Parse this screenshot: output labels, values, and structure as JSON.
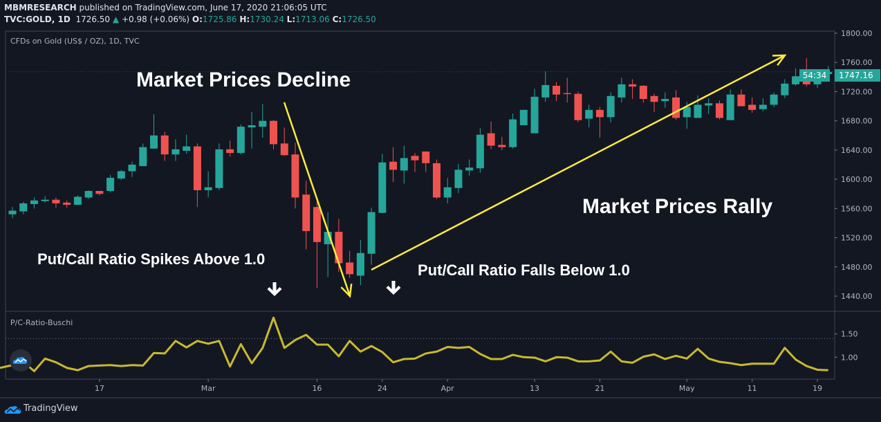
{
  "header": {
    "publisher": "MBMRESEARCH",
    "published_text": "published on TradingView.com, June 17, 2020 21:06:05 UTC",
    "symbol": "TVC:GOLD, 1D",
    "last": "1726.50",
    "change": "+0.98 (+0.06%)",
    "o_label": "O:",
    "o": "1725.86",
    "h_label": "H:",
    "h": "1730.24",
    "l_label": "L:",
    "l": "1713.06",
    "c_label": "C:",
    "c": "1726.50"
  },
  "chart_title": "CFDs on Gold (US$ / OZ), 1D, TVC",
  "indicator_title": "P/C-Ratio-Buschi",
  "price_tag": "1747.16",
  "countdown_tag": "54:34",
  "annotations": {
    "decline": "Market Prices Decline",
    "rally": "Market Prices Rally",
    "spikes": "Put/Call Ratio Spikes Above 1.0",
    "falls": "Put/Call Ratio Falls Below 1.0"
  },
  "footer": {
    "brand": "TradingView"
  },
  "colors": {
    "up": "#26a69a",
    "down": "#ef5350",
    "indicator": "#c9b92e",
    "arrow": "#ffeb3b",
    "background": "#131722"
  },
  "chart_data": [
    {
      "type": "candlestick",
      "title": "CFDs on Gold (US$ / OZ), 1D, TVC",
      "ylim": [
        1420,
        1820
      ],
      "y_ticks": [
        "1800.00",
        "1760.00",
        "1720.00",
        "1680.00",
        "1640.00",
        "1600.00",
        "1560.00",
        "1520.00",
        "1480.00",
        "1440.00"
      ],
      "x_ticks": [
        {
          "label": "17",
          "index": 8
        },
        {
          "label": "Mar",
          "index": 18
        },
        {
          "label": "16",
          "index": 28
        },
        {
          "label": "24",
          "index": 34
        },
        {
          "label": "Apr",
          "index": 40
        },
        {
          "label": "13",
          "index": 48
        },
        {
          "label": "21",
          "index": 54
        },
        {
          "label": "May",
          "index": 62
        },
        {
          "label": "11",
          "index": 68
        },
        {
          "label": "19",
          "index": 74
        }
      ],
      "ohlc": [
        [
          1552,
          1562,
          1547,
          1557
        ],
        [
          1556,
          1569,
          1552,
          1567
        ],
        [
          1566,
          1575,
          1560,
          1571
        ],
        [
          1570,
          1577,
          1568,
          1572
        ],
        [
          1572,
          1575,
          1561,
          1567
        ],
        [
          1568,
          1571,
          1561,
          1565
        ],
        [
          1565,
          1578,
          1565,
          1576
        ],
        [
          1575,
          1585,
          1573,
          1584
        ],
        [
          1584,
          1584,
          1578,
          1580
        ],
        [
          1584,
          1606,
          1582,
          1602
        ],
        [
          1601,
          1613,
          1599,
          1611
        ],
        [
          1611,
          1624,
          1603,
          1620
        ],
        [
          1618,
          1649,
          1618,
          1644
        ],
        [
          1642,
          1689,
          1642,
          1660
        ],
        [
          1660,
          1665,
          1625,
          1634
        ],
        [
          1634,
          1655,
          1625,
          1641
        ],
        [
          1639,
          1661,
          1635,
          1645
        ],
        [
          1645,
          1649,
          1562,
          1585
        ],
        [
          1585,
          1611,
          1575,
          1589
        ],
        [
          1588,
          1649,
          1585,
          1641
        ],
        [
          1641,
          1653,
          1631,
          1636
        ],
        [
          1636,
          1675,
          1634,
          1672
        ],
        [
          1671,
          1692,
          1642,
          1674
        ],
        [
          1672,
          1703,
          1657,
          1680
        ],
        [
          1680,
          1681,
          1641,
          1648
        ],
        [
          1649,
          1671,
          1632,
          1633
        ],
        [
          1634,
          1650,
          1560,
          1575
        ],
        [
          1579,
          1598,
          1504,
          1529
        ],
        [
          1562,
          1575,
          1451,
          1514
        ],
        [
          1511,
          1555,
          1466,
          1528
        ],
        [
          1528,
          1546,
          1473,
          1485
        ],
        [
          1486,
          1502,
          1465,
          1470
        ],
        [
          1468,
          1517,
          1455,
          1499
        ],
        [
          1498,
          1561,
          1483,
          1555
        ],
        [
          1554,
          1635,
          1553,
          1623
        ],
        [
          1624,
          1644,
          1596,
          1613
        ],
        [
          1612,
          1646,
          1594,
          1629
        ],
        [
          1632,
          1636,
          1610,
          1626
        ],
        [
          1638,
          1638,
          1610,
          1622
        ],
        [
          1622,
          1627,
          1573,
          1575
        ],
        [
          1575,
          1602,
          1567,
          1589
        ],
        [
          1588,
          1621,
          1581,
          1613
        ],
        [
          1612,
          1627,
          1605,
          1616
        ],
        [
          1615,
          1670,
          1609,
          1661
        ],
        [
          1663,
          1679,
          1641,
          1646
        ],
        [
          1647,
          1658,
          1640,
          1644
        ],
        [
          1644,
          1690,
          1642,
          1682
        ],
        [
          1674,
          1695,
          1674,
          1695
        ],
        [
          1663,
          1724,
          1663,
          1713
        ],
        [
          1712,
          1748,
          1706,
          1729
        ],
        [
          1728,
          1733,
          1707,
          1716
        ],
        [
          1718,
          1739,
          1705,
          1717
        ],
        [
          1717,
          1720,
          1678,
          1681
        ],
        [
          1683,
          1702,
          1671,
          1695
        ],
        [
          1695,
          1699,
          1657,
          1685
        ],
        [
          1685,
          1719,
          1678,
          1714
        ],
        [
          1712,
          1739,
          1705,
          1730
        ],
        [
          1730,
          1737,
          1710,
          1727
        ],
        [
          1728,
          1729,
          1705,
          1710
        ],
        [
          1714,
          1717,
          1692,
          1706
        ],
        [
          1707,
          1719,
          1698,
          1710
        ],
        [
          1712,
          1722,
          1681,
          1684
        ],
        [
          1685,
          1706,
          1669,
          1699
        ],
        [
          1684,
          1715,
          1684,
          1702
        ],
        [
          1701,
          1711,
          1689,
          1704
        ],
        [
          1704,
          1708,
          1682,
          1684
        ],
        [
          1681,
          1723,
          1681,
          1716
        ],
        [
          1716,
          1723,
          1700,
          1700
        ],
        [
          1702,
          1712,
          1691,
          1695
        ],
        [
          1696,
          1711,
          1693,
          1702
        ],
        [
          1702,
          1719,
          1699,
          1716
        ],
        [
          1715,
          1737,
          1711,
          1731
        ],
        [
          1730,
          1752,
          1728,
          1741
        ],
        [
          1741,
          1766,
          1727,
          1730
        ],
        [
          1730,
          1748,
          1725,
          1745
        ],
        [
          1744,
          1755,
          1742,
          1747.16
        ]
      ]
    },
    {
      "type": "line",
      "title": "P/C-Ratio-Buschi",
      "ylim": [
        0.62,
        2.0
      ],
      "y_ticks": [
        "1.50",
        "1.00"
      ],
      "reference_line": 1.4,
      "values": [
        0.83,
        0.9,
        0.7,
        0.97,
        0.89,
        0.77,
        0.72,
        0.81,
        0.82,
        0.83,
        0.81,
        0.83,
        0.82,
        1.09,
        1.08,
        1.35,
        1.21,
        1.35,
        1.29,
        1.35,
        0.8,
        1.28,
        0.87,
        1.2,
        1.85,
        1.2,
        1.37,
        1.48,
        1.27,
        1.27,
        1.02,
        1.35,
        1.12,
        1.24,
        1.11,
        0.89,
        0.96,
        0.97,
        1.08,
        1.12,
        1.22,
        1.2,
        1.22,
        1.07,
        0.96,
        0.96,
        1.05,
        1.0,
        0.99,
        0.91,
        1.0,
        0.99,
        0.91,
        0.91,
        0.93,
        1.12,
        0.91,
        0.88,
        1.01,
        1.06,
        0.96,
        1.03,
        0.97,
        1.18,
        0.97,
        0.9,
        0.87,
        0.83,
        0.86,
        0.86,
        0.86,
        1.2,
        0.95,
        0.81,
        0.73,
        0.72
      ]
    }
  ]
}
